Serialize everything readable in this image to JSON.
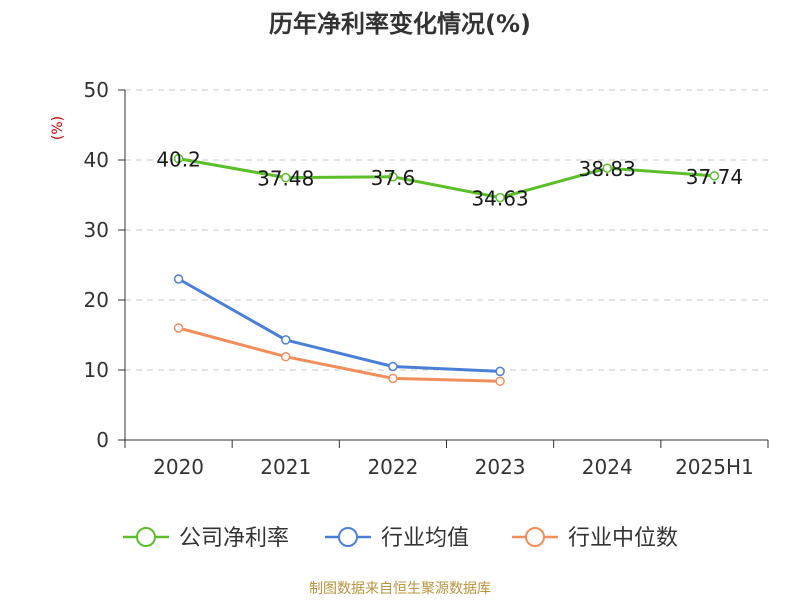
{
  "title": "历年净利率变化情况(%)",
  "source": "制图数据来自恒生聚源数据库",
  "colors": {
    "company": "#5cbf2a",
    "industry_avg": "#4a7fd8",
    "industry_median": "#f28e5c",
    "unit_label": "#cc0000",
    "source_text": "#b8943c"
  },
  "chart_data": {
    "type": "line",
    "title": "历年净利率变化情况(%)",
    "xlabel": "",
    "ylabel": "(%)",
    "ylim": [
      0,
      50
    ],
    "yticks": [
      0,
      10,
      20,
      30,
      40,
      50
    ],
    "grid": "horizontal dashed",
    "legend_position": "bottom",
    "categories": [
      "2020",
      "2021",
      "2022",
      "2023",
      "2024",
      "2025H1"
    ],
    "series": [
      {
        "name": "公司净利率",
        "values": [
          40.2,
          37.48,
          37.6,
          34.63,
          38.83,
          37.74
        ],
        "show_labels": true
      },
      {
        "name": "行业均值",
        "values": [
          23.0,
          14.3,
          10.5,
          9.8,
          null,
          null
        ],
        "show_labels": false
      },
      {
        "name": "行业中位数",
        "values": [
          16.0,
          11.9,
          8.8,
          8.4,
          null,
          null
        ],
        "show_labels": false
      }
    ],
    "data_labels": [
      "40.2",
      "37.48",
      "37.6",
      "34.63",
      "38.83",
      "37.74"
    ]
  }
}
